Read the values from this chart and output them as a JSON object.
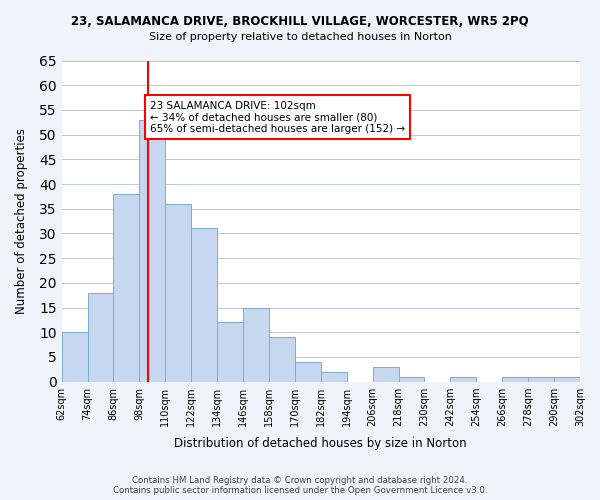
{
  "title": "23, SALAMANCA DRIVE, BROCKHILL VILLAGE, WORCESTER, WR5 2PQ",
  "subtitle": "Size of property relative to detached houses in Norton",
  "xlabel": "Distribution of detached houses by size in Norton",
  "ylabel": "Number of detached properties",
  "bar_edges": [
    62,
    74,
    86,
    98,
    110,
    122,
    134,
    146,
    158,
    170,
    182,
    194,
    206,
    218,
    230,
    242,
    254,
    266,
    278,
    290,
    302
  ],
  "bar_heights": [
    10,
    18,
    38,
    53,
    36,
    31,
    12,
    15,
    9,
    4,
    2,
    0,
    3,
    1,
    0,
    1,
    0,
    1,
    1,
    1
  ],
  "bar_color": "#c5d8f0",
  "bar_edge_color": "#7aacd6",
  "reference_line_x": 102,
  "reference_line_color": "red",
  "annotation_text": "23 SALAMANCA DRIVE: 102sqm\n← 34% of detached houses are smaller (80)\n65% of semi-detached houses are larger (152) →",
  "annotation_box_color": "white",
  "annotation_box_edge_color": "red",
  "ylim": [
    0,
    65
  ],
  "yticks": [
    0,
    5,
    10,
    15,
    20,
    25,
    30,
    35,
    40,
    45,
    50,
    55,
    60,
    65
  ],
  "tick_labels": [
    "62sqm",
    "74sqm",
    "86sqm",
    "98sqm",
    "110sqm",
    "122sqm",
    "134sqm",
    "146sqm",
    "158sqm",
    "170sqm",
    "182sqm",
    "194sqm",
    "206sqm",
    "218sqm",
    "230sqm",
    "242sqm",
    "254sqm",
    "266sqm",
    "278sqm",
    "290sqm",
    "302sqm"
  ],
  "footer_text": "Contains HM Land Registry data © Crown copyright and database right 2024.\nContains public sector information licensed under the Open Government Licence v3.0.",
  "background_color": "#f0f4fa",
  "plot_bg_color": "#ffffff"
}
